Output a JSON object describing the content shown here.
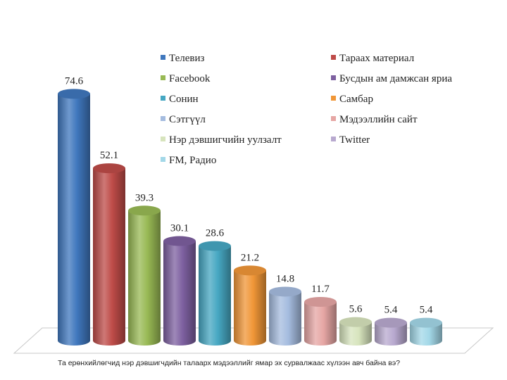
{
  "chart_data": {
    "type": "bar",
    "style": "3d-cylinder",
    "categories": [
      "Телевиз",
      "Тараах материал",
      "Facebook",
      "Бусдын ам дамжсан яриа",
      "Сонин",
      "Самбар",
      "Сэтгүүл",
      "Мэдээллийн сайт",
      "Нэр дэвшигчийн уулзалт",
      "Twitter",
      "FM, Радио"
    ],
    "values": [
      74.6,
      52.1,
      39.3,
      30.1,
      28.6,
      21.2,
      14.8,
      11.7,
      5.6,
      5.4,
      5.4
    ],
    "colors": [
      "#3f77bd",
      "#be4b48",
      "#98b954",
      "#7d60a0",
      "#46a7c2",
      "#f09637",
      "#a5bcdf",
      "#e6a6a4",
      "#d7e4bd",
      "#b8a9cf",
      "#a3d8e8"
    ],
    "legend_placement": "top-right",
    "grid": false,
    "ylim": [
      0,
      80
    ]
  },
  "caption": "Та ерөнхийлөгчид нэр дэвшигчдийн талаарх мэдээллийг ямар эх сурвалжаас хүлээн авч байна вэ?"
}
